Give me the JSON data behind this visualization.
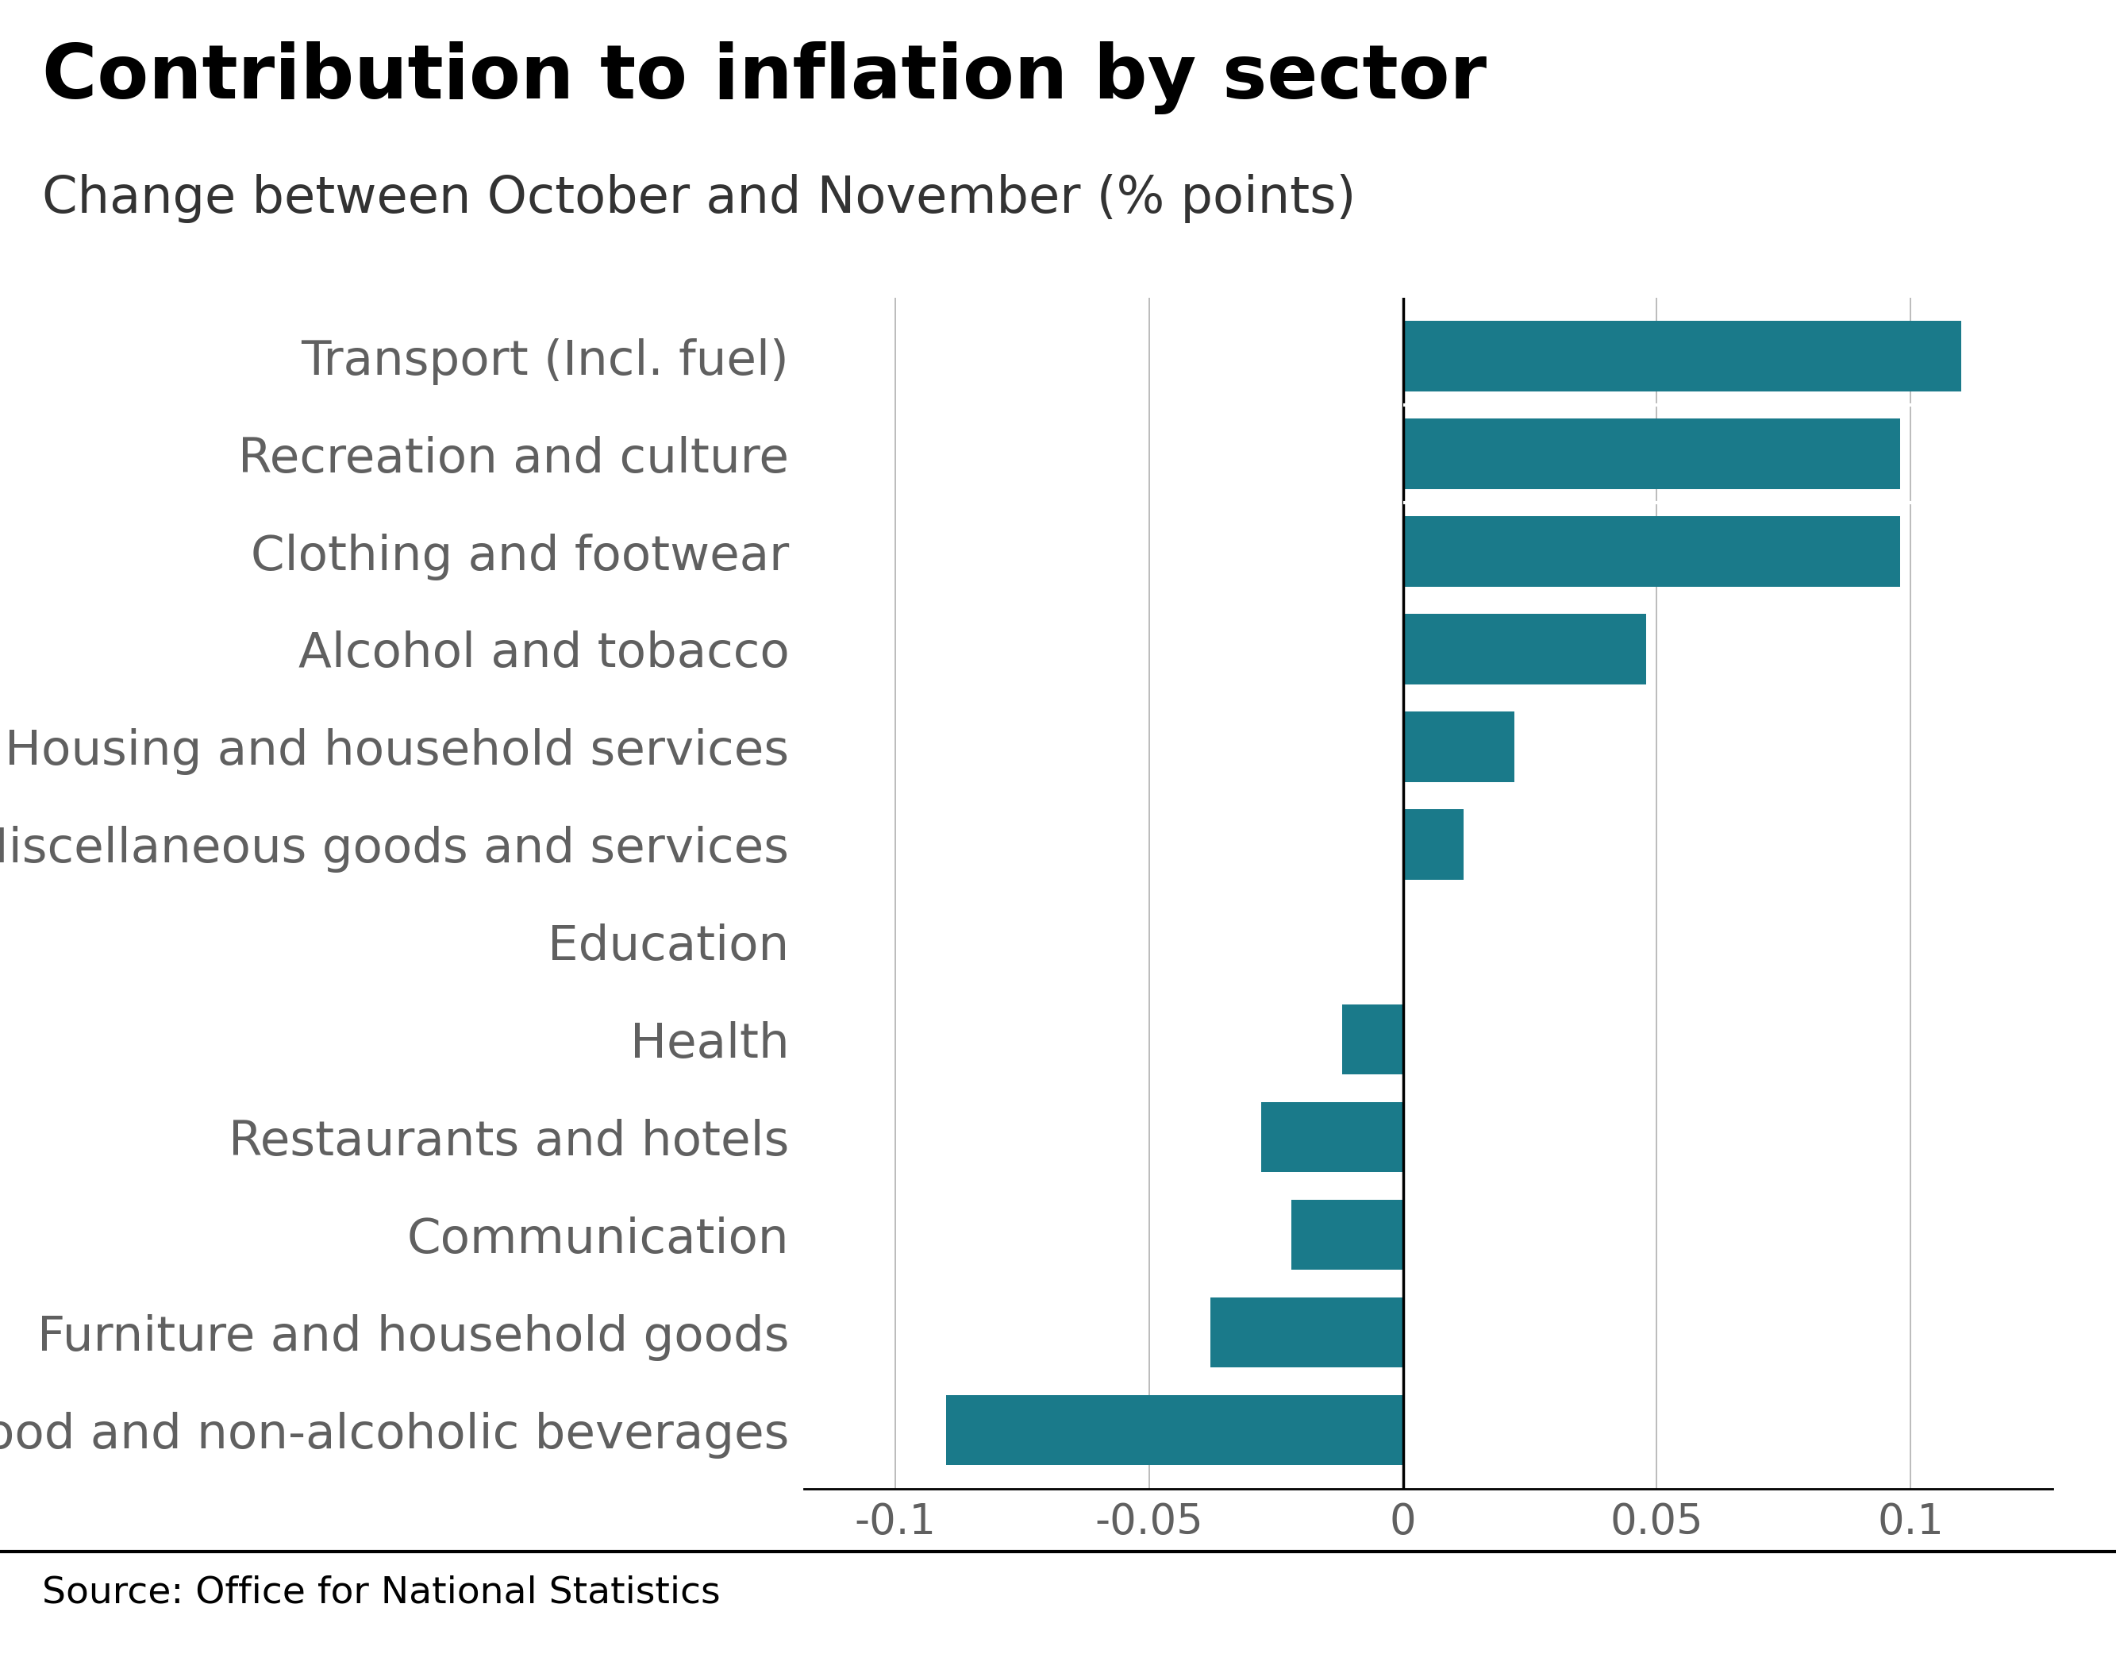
{
  "title": "Contribution to inflation by sector",
  "subtitle": "Change between October and November (% points)",
  "source": "Source: Office for National Statistics",
  "categories": [
    "Food and non-alcoholic beverages",
    "Furniture and household goods",
    "Communication",
    "Restaurants and hotels",
    "Health",
    "Education",
    "Miscellaneous goods and services",
    "Housing and household services",
    "Alcohol and tobacco",
    "Clothing and footwear",
    "Recreation and culture",
    "Transport (Incl. fuel)"
  ],
  "values": [
    -0.09,
    -0.038,
    -0.022,
    -0.028,
    -0.012,
    0.0,
    0.012,
    0.022,
    0.048,
    0.098,
    0.098,
    0.11
  ],
  "bar_color": "#1a7a8a",
  "background_color": "#ffffff",
  "xlim": [
    -0.118,
    0.128
  ],
  "xticks": [
    -0.1,
    -0.05,
    0,
    0.05,
    0.1
  ],
  "xtick_labels": [
    "-0.1",
    "-0.05",
    "0",
    "0.05",
    "0.1"
  ],
  "title_fontsize": 68,
  "subtitle_fontsize": 46,
  "label_fontsize": 44,
  "tick_fontsize": 38,
  "source_fontsize": 34,
  "label_color": "#606060",
  "tick_color": "#606060",
  "grid_color": "#b0b0b0",
  "axis_color": "#000000",
  "footer_line_color": "#000000",
  "bbc_box_color": "#000000",
  "bbc_text_color": "#ffffff",
  "bar_height": 0.72
}
